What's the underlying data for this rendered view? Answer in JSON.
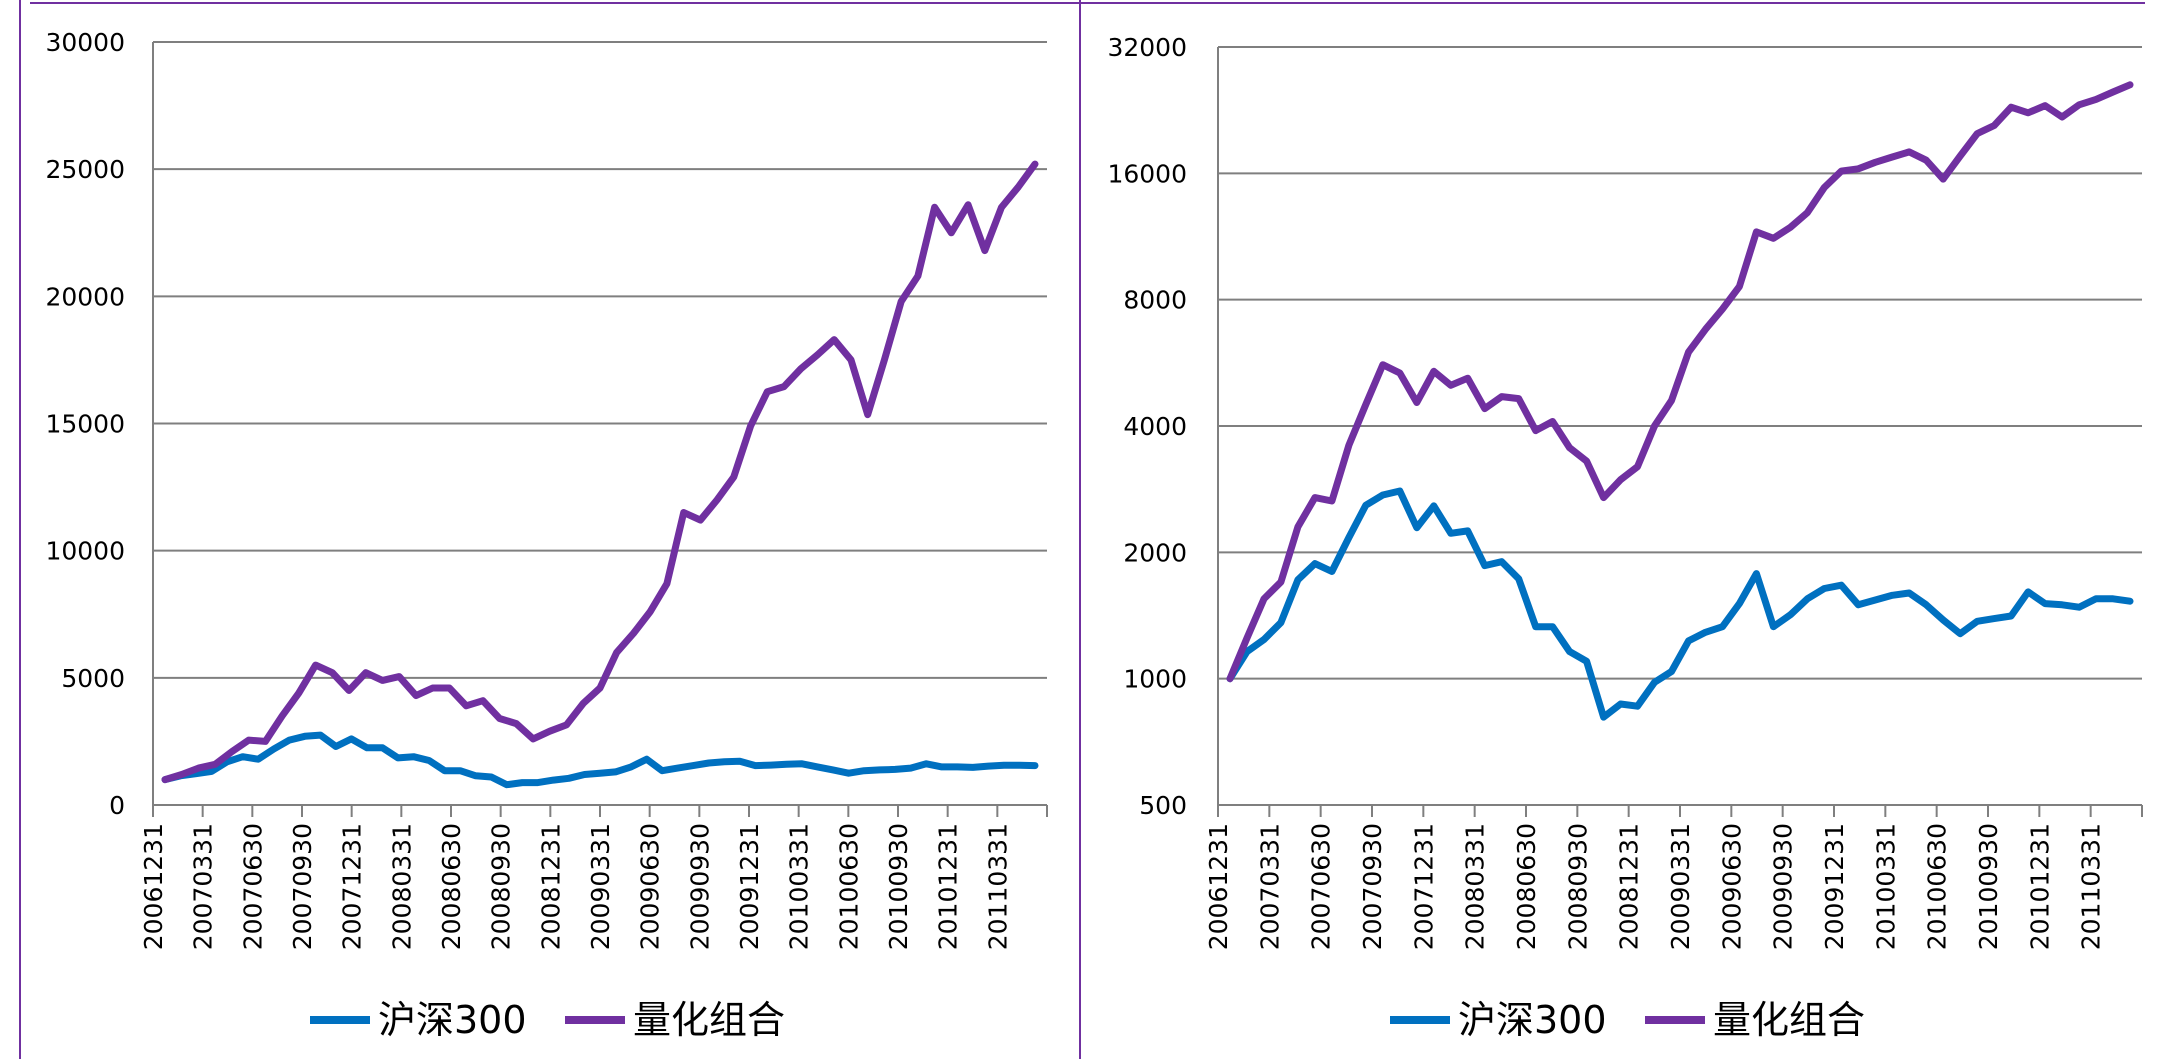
{
  "colors": {
    "series1": "#0070C0",
    "series2": "#7030A0",
    "grid": "#7F7F7F",
    "frame": "#7030A0"
  },
  "chart_data": [
    {
      "type": "line",
      "title": "",
      "xlabel": "",
      "ylabel": "",
      "yscale": "linear",
      "ylim": [
        0,
        30000
      ],
      "yticks": [
        0,
        5000,
        10000,
        15000,
        20000,
        25000,
        30000
      ],
      "ytick_labels": [
        "0",
        "5000",
        "10000",
        "15000",
        "20000",
        "25000",
        "30000"
      ],
      "x_tick_labels": [
        "20061231",
        "20070331",
        "20070630",
        "20070930",
        "20071231",
        "20080331",
        "20080630",
        "20080930",
        "20081231",
        "20090331",
        "20090630",
        "20090930",
        "20091231",
        "20100331",
        "20100630",
        "20100930",
        "20101231",
        "20110331"
      ],
      "legend": [
        "沪深300",
        "量化组合"
      ],
      "legend_position": "bottom",
      "series": [
        {
          "name": "沪深300",
          "values": [
            1000,
            1150,
            1230,
            1320,
            1700,
            1900,
            1800,
            2200,
            2550,
            2700,
            2750,
            2300,
            2600,
            2250,
            2250,
            1850,
            1900,
            1750,
            1350,
            1350,
            1150,
            1100,
            800,
            880,
            880,
            980,
            1050,
            1200,
            1250,
            1300,
            1500,
            1800,
            1350,
            1450,
            1550,
            1650,
            1700,
            1720,
            1550,
            1570,
            1600,
            1620,
            1500,
            1380,
            1250,
            1350,
            1380,
            1400,
            1450,
            1620,
            1500,
            1500,
            1480,
            1530,
            1560,
            1560,
            1550
          ]
        },
        {
          "name": "量化组合",
          "values": [
            1000,
            1200,
            1450,
            1600,
            2100,
            2550,
            2500,
            3500,
            4400,
            5500,
            5200,
            4500,
            5200,
            4900,
            5050,
            4300,
            4600,
            4600,
            3900,
            4100,
            3400,
            3200,
            2600,
            2900,
            3150,
            4000,
            4600,
            6000,
            6750,
            7600,
            8700,
            11500,
            11200,
            12000,
            12900,
            14900,
            16250,
            16450,
            17150,
            17700,
            18300,
            17500,
            15350,
            17500,
            19800,
            20800,
            23500,
            22500,
            23600,
            21800,
            23500,
            24300,
            25200
          ]
        }
      ]
    },
    {
      "type": "line",
      "title": "",
      "xlabel": "",
      "ylabel": "",
      "yscale": "log2",
      "ylim": [
        500,
        32000
      ],
      "yticks": [
        500,
        1000,
        2000,
        4000,
        8000,
        16000,
        32000
      ],
      "ytick_labels": [
        "500",
        "1000",
        "2000",
        "4000",
        "8000",
        "16000",
        "32000"
      ],
      "x_tick_labels": [
        "20061231",
        "20070331",
        "20070630",
        "20070930",
        "20071231",
        "20080331",
        "20080630",
        "20080930",
        "20081231",
        "20090331",
        "20090630",
        "20090930",
        "20091231",
        "20100331",
        "20100630",
        "20100930",
        "20101231",
        "20110331"
      ],
      "legend": [
        "沪深300",
        "量化组合"
      ],
      "legend_position": "bottom",
      "series": [
        {
          "name": "沪深300",
          "values": [
            1000,
            1160,
            1240,
            1360,
            1720,
            1880,
            1800,
            2170,
            2590,
            2740,
            2800,
            2290,
            2580,
            2220,
            2250,
            1860,
            1900,
            1730,
            1330,
            1330,
            1160,
            1100,
            810,
            870,
            860,
            980,
            1040,
            1230,
            1290,
            1330,
            1510,
            1780,
            1330,
            1420,
            1550,
            1640,
            1670,
            1500,
            1540,
            1580,
            1600,
            1500,
            1380,
            1280,
            1370,
            1390,
            1410,
            1610,
            1510,
            1500,
            1480,
            1550,
            1550,
            1530
          ]
        },
        {
          "name": "量化组合",
          "values": [
            1000,
            1250,
            1550,
            1700,
            2300,
            2700,
            2650,
            3600,
            4500,
            5600,
            5350,
            4550,
            5400,
            5000,
            5200,
            4400,
            4700,
            4650,
            3900,
            4100,
            3550,
            3300,
            2700,
            2980,
            3200,
            4000,
            4600,
            6000,
            6800,
            7600,
            8600,
            11600,
            11200,
            11900,
            12900,
            14800,
            16200,
            16400,
            17000,
            17500,
            18000,
            17200,
            15500,
            17600,
            19900,
            20800,
            23000,
            22300,
            23200,
            21800,
            23300,
            24000,
            25000,
            26000
          ]
        }
      ]
    }
  ]
}
